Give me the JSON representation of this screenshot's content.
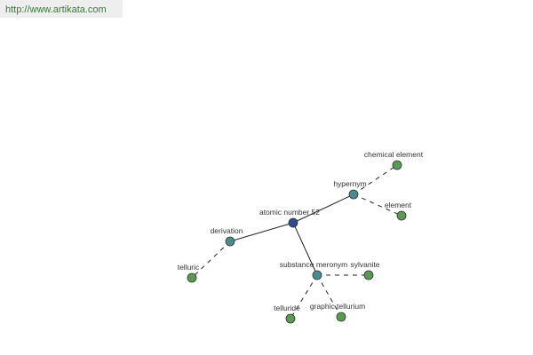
{
  "header": {
    "url": "http://www.artikata.com"
  },
  "nodes": [
    {
      "label": "atomic number 52"
    },
    {
      "label": "hypernym"
    },
    {
      "label": "chemical element"
    },
    {
      "label": "element"
    },
    {
      "label": "derivation"
    },
    {
      "label": "telluric"
    },
    {
      "label": "substance meronym"
    },
    {
      "label": "sylvanite"
    },
    {
      "label": "telluride"
    },
    {
      "label": "graphic tellurium"
    }
  ]
}
